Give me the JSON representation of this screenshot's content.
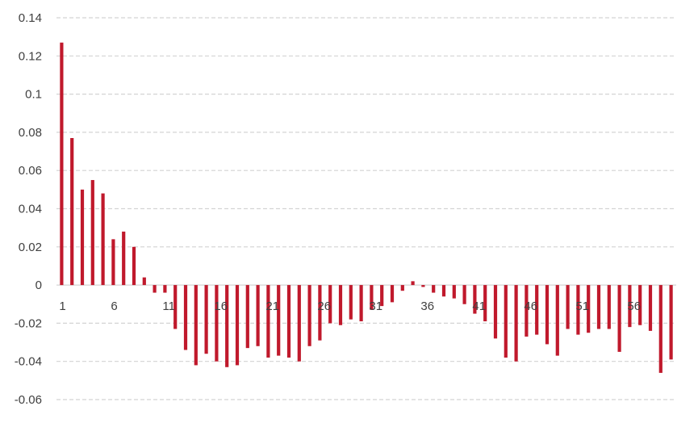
{
  "chart_data": {
    "type": "bar",
    "title": "",
    "xlabel": "",
    "ylabel": "",
    "ylim": [
      -0.06,
      0.14
    ],
    "ytick_step": 0.02,
    "y_ticks": [
      "0.14",
      "0.12",
      "0.1",
      "0.08",
      "0.06",
      "0.04",
      "0.02",
      "0",
      "-0.02",
      "-0.04",
      "-0.06"
    ],
    "x_tick_labels": [
      "1",
      "6",
      "11",
      "16",
      "21",
      "26",
      "31",
      "36",
      "41",
      "46",
      "51",
      "56"
    ],
    "x_tick_every": 5,
    "grid": true,
    "legend": "none",
    "bar_color": "#c0192c",
    "categories": [
      1,
      2,
      3,
      4,
      5,
      6,
      7,
      8,
      9,
      10,
      11,
      12,
      13,
      14,
      15,
      16,
      17,
      18,
      19,
      20,
      21,
      22,
      23,
      24,
      25,
      26,
      27,
      28,
      29,
      30,
      31,
      32,
      33,
      34,
      35,
      36,
      37,
      38,
      39,
      40,
      41,
      42,
      43,
      44,
      45,
      46,
      47,
      48,
      49,
      50,
      51,
      52,
      53,
      54,
      55,
      56,
      57,
      58,
      59,
      60
    ],
    "values": [
      0.127,
      0.077,
      0.05,
      0.055,
      0.048,
      0.024,
      0.028,
      0.02,
      0.004,
      -0.004,
      -0.004,
      -0.023,
      -0.034,
      -0.042,
      -0.036,
      -0.04,
      -0.043,
      -0.042,
      -0.033,
      -0.032,
      -0.038,
      -0.037,
      -0.038,
      -0.04,
      -0.032,
      -0.029,
      -0.02,
      -0.021,
      -0.018,
      -0.019,
      -0.013,
      -0.011,
      -0.009,
      -0.003,
      0.002,
      -0.001,
      -0.004,
      -0.006,
      -0.007,
      -0.01,
      -0.015,
      -0.019,
      -0.028,
      -0.038,
      -0.04,
      -0.027,
      -0.026,
      -0.031,
      -0.037,
      -0.023,
      -0.026,
      -0.025,
      -0.023,
      -0.023,
      -0.035,
      -0.022,
      -0.021,
      -0.024,
      -0.046,
      -0.039
    ]
  }
}
